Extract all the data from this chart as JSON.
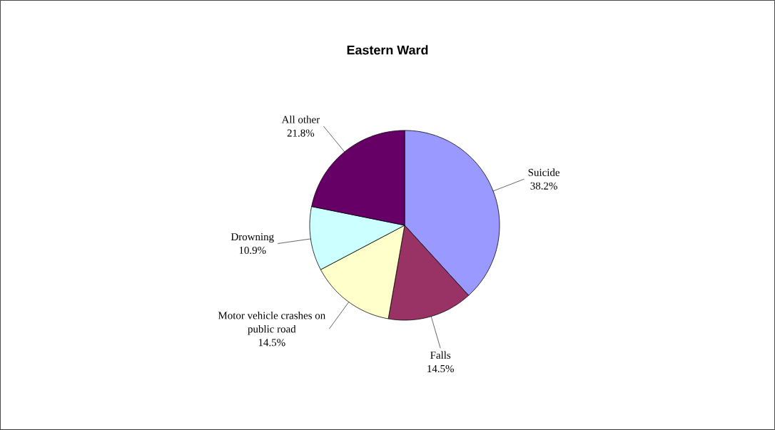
{
  "chart_data": {
    "type": "pie",
    "title": "Eastern Ward",
    "categories": [
      "Suicide",
      "Falls",
      "Motor vehicle crashes on public road",
      "Drowning",
      "All other"
    ],
    "values": [
      38.2,
      14.5,
      14.5,
      10.9,
      21.8
    ],
    "value_labels": [
      "38.2%",
      "14.5%",
      "14.5%",
      "10.9%",
      "21.8%"
    ],
    "colors": [
      "#9999ff",
      "#993366",
      "#ffffcc",
      "#ccffff",
      "#660066"
    ]
  }
}
